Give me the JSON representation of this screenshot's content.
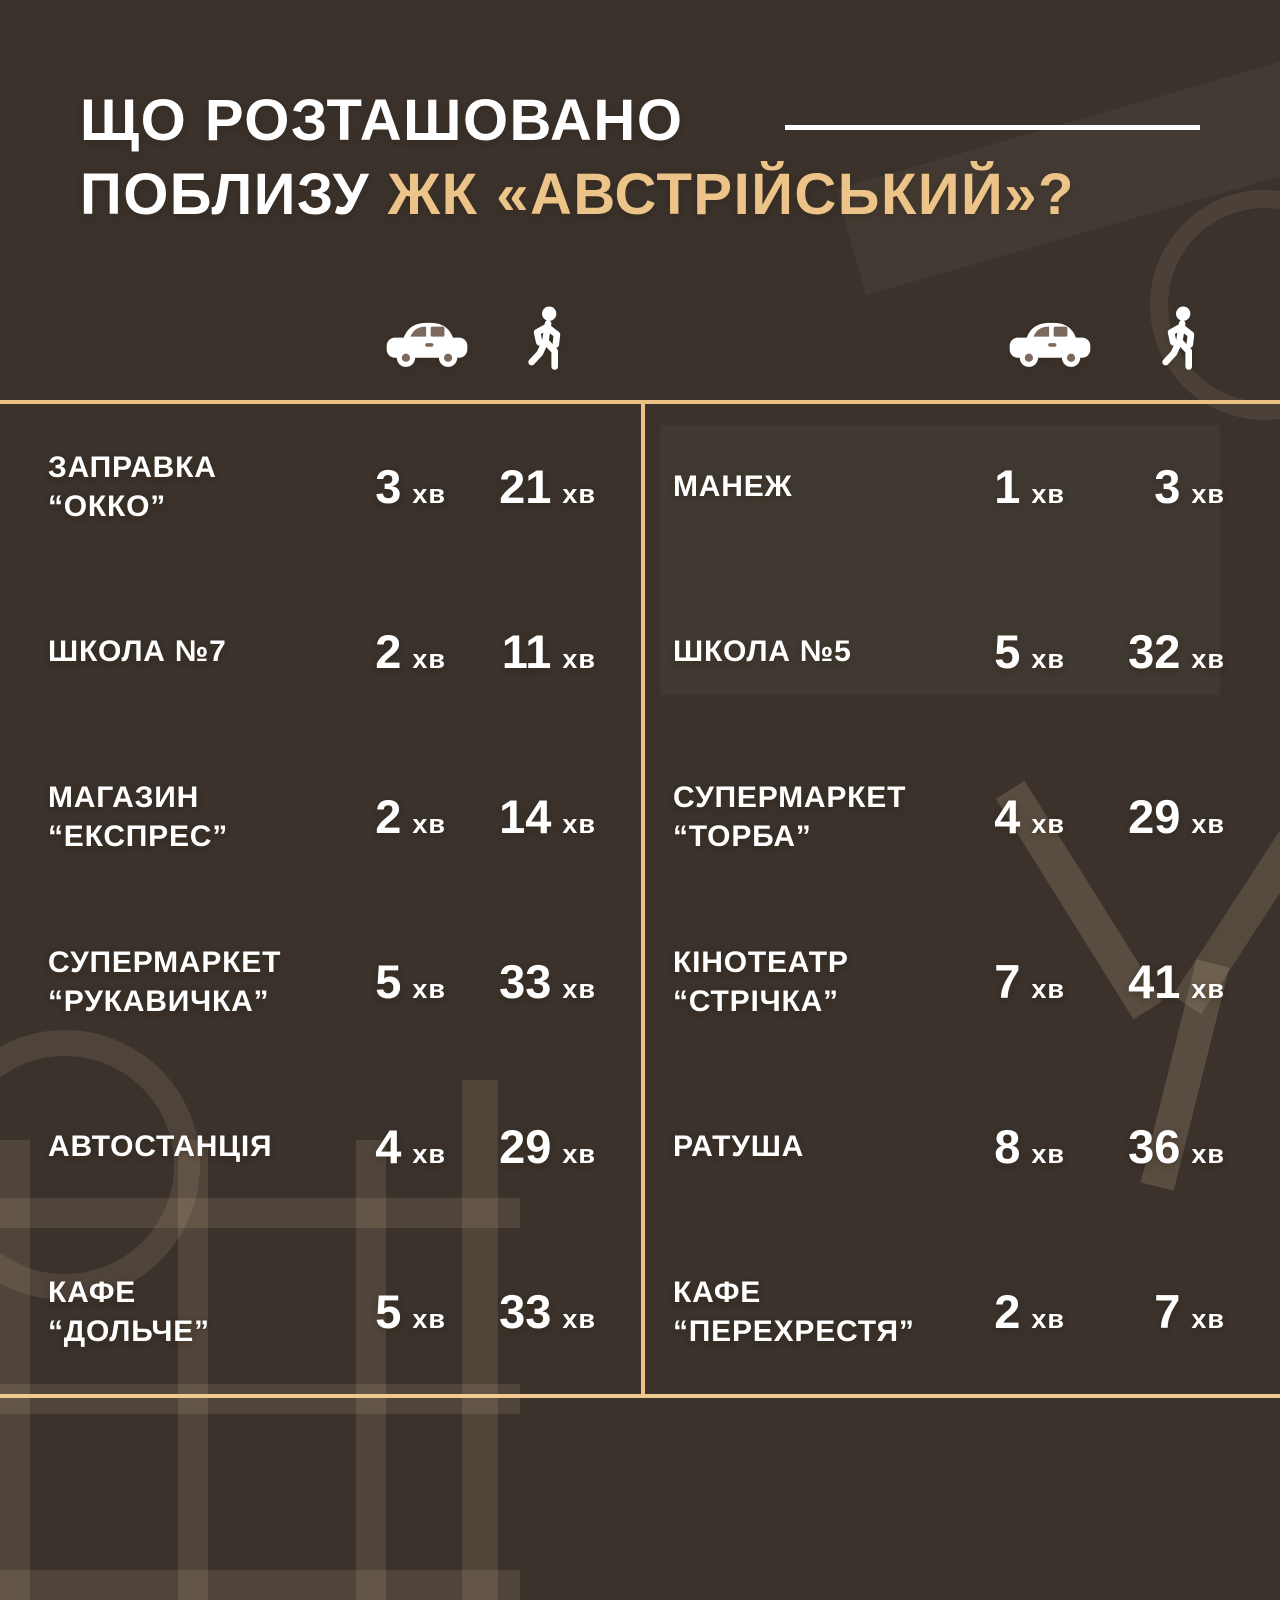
{
  "title": {
    "line1": "ЩО РОЗТАШОВАНО",
    "line2_prefix": "ПОБЛИЗУ",
    "line2_highlight": "ЖК «АВСТРІЙСЬКИЙ»?"
  },
  "unit": "хв",
  "colors": {
    "accent_gold_text": "#ecc489",
    "table_line_gold": "#ecc184",
    "text_white": "#ffffff",
    "background_brown_top": "#7e6e64",
    "background_brown_bottom": "#52402c"
  },
  "header_icons": {
    "car": "car-icon",
    "walk": "pedestrian-icon"
  },
  "table": {
    "left": [
      {
        "name_lines": [
          "ЗАПРАВКА",
          "“ОККО”"
        ],
        "car_min": "3",
        "walk_min": "21"
      },
      {
        "name_lines": [
          "ШКОЛА №7"
        ],
        "car_min": "2",
        "walk_min": "11"
      },
      {
        "name_lines": [
          "МАГАЗИН",
          "“ЕКСПРЕС”"
        ],
        "car_min": "2",
        "walk_min": "14"
      },
      {
        "name_lines": [
          "СУПЕРМАРКЕТ",
          "“РУКАВИЧКА”"
        ],
        "car_min": "5",
        "walk_min": "33"
      },
      {
        "name_lines": [
          "АВТОСТАНЦІЯ"
        ],
        "car_min": "4",
        "walk_min": "29"
      },
      {
        "name_lines": [
          "КАФЕ",
          "“ДОЛЬЧЕ”"
        ],
        "car_min": "5",
        "walk_min": "33"
      }
    ],
    "right": [
      {
        "name_lines": [
          "МАНЕЖ"
        ],
        "car_min": "1",
        "walk_min": "3"
      },
      {
        "name_lines": [
          "ШКОЛА №5"
        ],
        "car_min": "5",
        "walk_min": "32"
      },
      {
        "name_lines": [
          "СУПЕРМАРКЕТ",
          "“ТОРБА”"
        ],
        "car_min": "4",
        "walk_min": "29"
      },
      {
        "name_lines": [
          "КІНОТЕАТР",
          "“СТРІЧКА”"
        ],
        "car_min": "7",
        "walk_min": "41"
      },
      {
        "name_lines": [
          "РАТУША"
        ],
        "car_min": "8",
        "walk_min": "36"
      },
      {
        "name_lines": [
          "КАФЕ",
          "“ПЕРЕХРЕСТЯ”"
        ],
        "car_min": "2",
        "walk_min": "7"
      }
    ]
  },
  "chart_data": {
    "type": "table",
    "title": "ЩО РОЗТАШОВАНО ПОБЛИЗУ ЖК «АВСТРІЙСЬКИЙ»?",
    "columns": [
      "place",
      "car_minutes",
      "walk_minutes"
    ],
    "unit": "хв",
    "rows": [
      [
        "ЗАПРАВКА “ОККО”",
        3,
        21
      ],
      [
        "ШКОЛА №7",
        2,
        11
      ],
      [
        "МАГАЗИН “ЕКСПРЕС”",
        2,
        14
      ],
      [
        "СУПЕРМАРКЕТ “РУКАВИЧКА”",
        5,
        33
      ],
      [
        "АВТОСТАНЦІЯ",
        4,
        29
      ],
      [
        "КАФЕ “ДОЛЬЧЕ”",
        5,
        33
      ],
      [
        "МАНЕЖ",
        1,
        3
      ],
      [
        "ШКОЛА №5",
        5,
        32
      ],
      [
        "СУПЕРМАРКЕТ “ТОРБА”",
        4,
        29
      ],
      [
        "КІНОТЕАТР “СТРІЧКА”",
        7,
        41
      ],
      [
        "РАТУША",
        8,
        36
      ],
      [
        "КАФЕ “ПЕРЕХРЕСТЯ”",
        2,
        7
      ]
    ]
  }
}
